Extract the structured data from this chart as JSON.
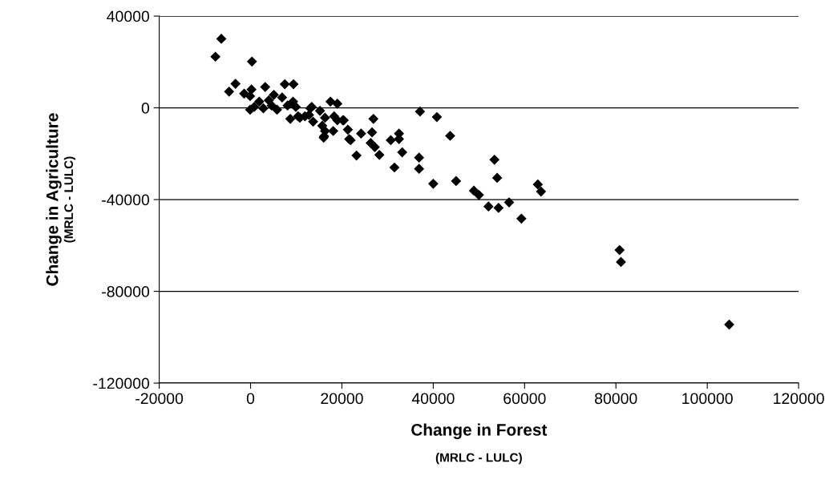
{
  "chart_data": {
    "type": "scatter",
    "xlabel": "Change in Forest\n(MRLC - LULC)",
    "ylabel": "Change in Agriculture\n(MRLC - LULC)",
    "xlim": [
      -20000,
      120000
    ],
    "xticks": [
      -20000,
      0,
      20000,
      40000,
      60000,
      80000,
      100000,
      120000
    ],
    "ylim": [
      -120000,
      40000
    ],
    "yticks": [
      -120000,
      -80000,
      -40000,
      0,
      40000
    ],
    "grid": "y",
    "marker": "diamond",
    "series": [
      {
        "color": "#000000",
        "x": [
          -6400,
          -7700,
          300,
          -3300,
          -4700,
          7500,
          9400,
          -1400,
          200,
          3200,
          -100,
          1900,
          5100,
          6900,
          4000,
          -100,
          800,
          2800,
          5800,
          4600,
          9300,
          8100,
          9900,
          8700,
          10400,
          11900,
          13400,
          12800,
          15200,
          13700,
          17500,
          19000,
          16300,
          18300,
          20400,
          15700,
          16300,
          16000,
          18100,
          21300,
          24200,
          21600,
          23200,
          13100,
          10800,
          16100,
          19000,
          20200,
          21900,
          26900,
          26600,
          26300,
          27200,
          28200,
          30700,
          32500,
          32500,
          33200,
          31500,
          36900,
          36900,
          37100,
          40000,
          40800,
          43700,
          45000,
          48900,
          50000,
          52100,
          54300,
          56600,
          59300,
          53400,
          54000,
          62900,
          63600,
          80800,
          81100,
          104800
        ],
        "values": [
          30100,
          22300,
          20200,
          10500,
          7100,
          10300,
          10300,
          6200,
          8000,
          9100,
          5100,
          2700,
          5700,
          4500,
          3300,
          -800,
          400,
          -200,
          -800,
          1000,
          2700,
          1000,
          400,
          -4800,
          -3700,
          -3700,
          400,
          -3100,
          -1300,
          -6000,
          2700,
          1800,
          -4300,
          -3700,
          -5400,
          -7800,
          -10100,
          -13000,
          -10100,
          -9500,
          -11200,
          -13600,
          -20800,
          -200,
          -4300,
          -12400,
          -5400,
          -5400,
          -14100,
          -4800,
          -10700,
          -15300,
          -17100,
          -20500,
          -14100,
          -11200,
          -13600,
          -19400,
          -26000,
          -21700,
          -26600,
          -1600,
          -33100,
          -4000,
          -12200,
          -31900,
          -36100,
          -38000,
          -43000,
          -43600,
          -41200,
          -48300,
          -22600,
          -30500,
          -33400,
          -36500,
          -62000,
          -67200,
          -94500
        ]
      }
    ]
  }
}
